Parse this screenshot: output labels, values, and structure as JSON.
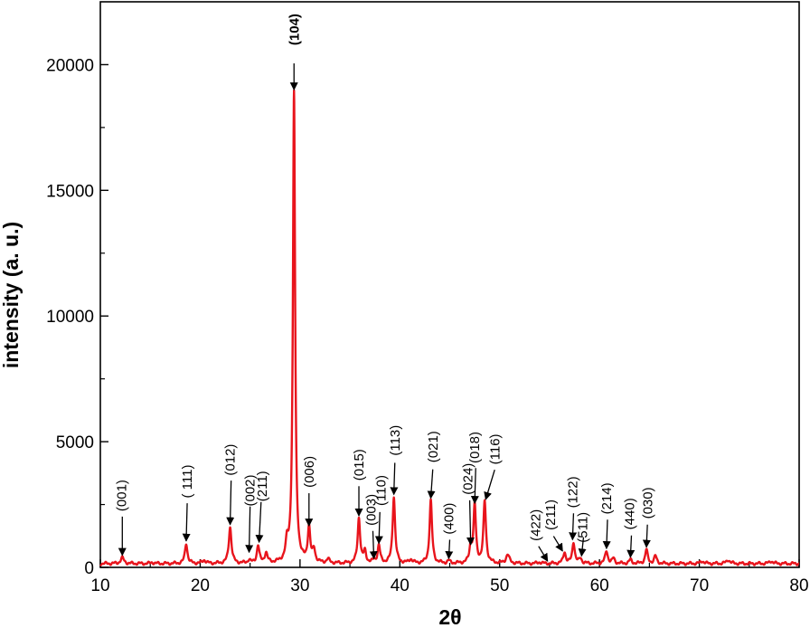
{
  "chart_data": {
    "type": "line",
    "title": "",
    "xlabel": "2θ",
    "ylabel": "intensity (a. u.)",
    "xlim": [
      10,
      80
    ],
    "ylim": [
      0,
      22500
    ],
    "x_ticks": [
      10,
      20,
      30,
      40,
      50,
      60,
      70,
      80
    ],
    "x_tick_labels": [
      "10",
      "20",
      "30",
      "40",
      "50",
      "60",
      "70",
      "80"
    ],
    "y_ticks": [
      0,
      5000,
      10000,
      15000,
      20000
    ],
    "y_tick_labels": [
      "0",
      "5000",
      "10000",
      "15000",
      "20000"
    ],
    "grid": false,
    "line_color": "#e8141c",
    "baseline": 150,
    "peaks": [
      {
        "x": 12.2,
        "y": 380,
        "w": 0.2
      },
      {
        "x": 15.2,
        "y": 200,
        "w": 0.15
      },
      {
        "x": 18.6,
        "y": 950,
        "w": 0.15
      },
      {
        "x": 20.4,
        "y": 280,
        "w": 0.2
      },
      {
        "x": 23.0,
        "y": 1600,
        "w": 0.16
      },
      {
        "x": 24.9,
        "y": 280,
        "w": 0.15
      },
      {
        "x": 25.8,
        "y": 850,
        "w": 0.15
      },
      {
        "x": 26.6,
        "y": 550,
        "w": 0.16
      },
      {
        "x": 28.7,
        "y": 800,
        "w": 0.16
      },
      {
        "x": 29.4,
        "y": 18900,
        "w": 0.13
      },
      {
        "x": 30.9,
        "y": 1550,
        "w": 0.15
      },
      {
        "x": 31.4,
        "y": 650,
        "w": 0.15
      },
      {
        "x": 32.8,
        "y": 300,
        "w": 0.18
      },
      {
        "x": 35.9,
        "y": 1950,
        "w": 0.15
      },
      {
        "x": 36.5,
        "y": 600,
        "w": 0.15
      },
      {
        "x": 37.4,
        "y": 250,
        "w": 0.15
      },
      {
        "x": 37.9,
        "y": 850,
        "w": 0.15
      },
      {
        "x": 39.4,
        "y": 2800,
        "w": 0.15
      },
      {
        "x": 41.1,
        "y": 300,
        "w": 0.2
      },
      {
        "x": 43.1,
        "y": 2650,
        "w": 0.15
      },
      {
        "x": 44.9,
        "y": 250,
        "w": 0.15
      },
      {
        "x": 47.1,
        "y": 800,
        "w": 0.15
      },
      {
        "x": 47.5,
        "y": 2450,
        "w": 0.14
      },
      {
        "x": 48.5,
        "y": 2600,
        "w": 0.15
      },
      {
        "x": 50.8,
        "y": 500,
        "w": 0.2
      },
      {
        "x": 54.0,
        "y": 200,
        "w": 0.2
      },
      {
        "x": 56.5,
        "y": 600,
        "w": 0.15
      },
      {
        "x": 57.4,
        "y": 1000,
        "w": 0.15
      },
      {
        "x": 58.1,
        "y": 350,
        "w": 0.15
      },
      {
        "x": 60.7,
        "y": 650,
        "w": 0.16
      },
      {
        "x": 61.4,
        "y": 350,
        "w": 0.15
      },
      {
        "x": 63.1,
        "y": 300,
        "w": 0.16
      },
      {
        "x": 64.7,
        "y": 700,
        "w": 0.15
      },
      {
        "x": 65.6,
        "y": 450,
        "w": 0.15
      },
      {
        "x": 70.3,
        "y": 250,
        "w": 0.2
      },
      {
        "x": 72.9,
        "y": 300,
        "w": 0.2
      },
      {
        "x": 77.2,
        "y": 250,
        "w": 0.2
      }
    ],
    "annotations": [
      {
        "label": "(001)",
        "label_x": 12.2,
        "label_y": 2860,
        "arrow_x1": 12.2,
        "arrow_y1": 2020,
        "arrow_x2": 12.2,
        "arrow_y2": 480,
        "bold": false
      },
      {
        "label": "( 111)",
        "label_x": 18.8,
        "label_y": 3420,
        "arrow_x1": 18.7,
        "arrow_y1": 2550,
        "arrow_x2": 18.6,
        "arrow_y2": 1050,
        "bold": false
      },
      {
        "label": "(012)",
        "label_x": 23.1,
        "label_y": 4280,
        "arrow_x1": 23.1,
        "arrow_y1": 3450,
        "arrow_x2": 23.0,
        "arrow_y2": 1700,
        "bold": false
      },
      {
        "label": "(002)",
        "label_x": 25.1,
        "label_y": 3060,
        "arrow_x1": 25.0,
        "arrow_y1": 2420,
        "arrow_x2": 24.9,
        "arrow_y2": 600,
        "bold": false
      },
      {
        "label": "(211)",
        "label_x": 26.3,
        "label_y": 3230,
        "arrow_x1": 26.1,
        "arrow_y1": 2600,
        "arrow_x2": 25.9,
        "arrow_y2": 1000,
        "bold": false
      },
      {
        "label": "(104)",
        "label_x": 29.5,
        "label_y": 21400,
        "arrow_x1": 29.4,
        "arrow_y1": 20050,
        "arrow_x2": 29.4,
        "arrow_y2": 19000,
        "bold": true
      },
      {
        "label": "(006)",
        "label_x": 31.0,
        "label_y": 3800,
        "arrow_x1": 30.9,
        "arrow_y1": 2950,
        "arrow_x2": 30.9,
        "arrow_y2": 1650,
        "bold": false
      },
      {
        "label": "(015)",
        "label_x": 36.0,
        "label_y": 4080,
        "arrow_x1": 35.9,
        "arrow_y1": 3230,
        "arrow_x2": 35.9,
        "arrow_y2": 2050,
        "bold": false
      },
      {
        "label": "(003)",
        "label_x": 37.2,
        "label_y": 2290,
        "arrow_x1": 37.3,
        "arrow_y1": 1450,
        "arrow_x2": 37.4,
        "arrow_y2": 350,
        "bold": false
      },
      {
        "label": "(110)",
        "label_x": 38.2,
        "label_y": 3060,
        "arrow_x1": 38.0,
        "arrow_y1": 2200,
        "arrow_x2": 37.9,
        "arrow_y2": 950,
        "bold": false
      },
      {
        "label": "(113)",
        "label_x": 39.6,
        "label_y": 5050,
        "arrow_x1": 39.5,
        "arrow_y1": 4160,
        "arrow_x2": 39.4,
        "arrow_y2": 2900,
        "bold": false
      },
      {
        "label": "(021)",
        "label_x": 43.4,
        "label_y": 4800,
        "arrow_x1": 43.3,
        "arrow_y1": 3900,
        "arrow_x2": 43.1,
        "arrow_y2": 2750,
        "bold": false
      },
      {
        "label": "(400)",
        "label_x": 45.0,
        "label_y": 1940,
        "arrow_x1": 45.0,
        "arrow_y1": 1100,
        "arrow_x2": 44.9,
        "arrow_y2": 350,
        "bold": false
      },
      {
        "label": "(024)",
        "label_x": 46.9,
        "label_y": 3520,
        "arrow_x1": 47.0,
        "arrow_y1": 2670,
        "arrow_x2": 47.1,
        "arrow_y2": 900,
        "bold": false
      },
      {
        "label": "(018)",
        "label_x": 47.6,
        "label_y": 4770,
        "arrow_x1": 47.6,
        "arrow_y1": 3950,
        "arrow_x2": 47.5,
        "arrow_y2": 2550,
        "bold": false
      },
      {
        "label": "(116)",
        "label_x": 49.6,
        "label_y": 4700,
        "arrow_x1": 49.5,
        "arrow_y1": 3880,
        "arrow_x2": 48.6,
        "arrow_y2": 2700,
        "bold": false
      },
      {
        "label": "(422)",
        "label_x": 53.7,
        "label_y": 1680,
        "arrow_x1": 53.9,
        "arrow_y1": 840,
        "arrow_x2": 54.8,
        "arrow_y2": 250,
        "bold": false
      },
      {
        "label": "(211)",
        "label_x": 55.2,
        "label_y": 2090,
        "arrow_x1": 55.4,
        "arrow_y1": 1240,
        "arrow_x2": 56.3,
        "arrow_y2": 650,
        "bold": false
      },
      {
        "label": "(122)",
        "label_x": 57.4,
        "label_y": 2990,
        "arrow_x1": 57.4,
        "arrow_y1": 2150,
        "arrow_x2": 57.3,
        "arrow_y2": 1100,
        "bold": false
      },
      {
        "label": "(511)",
        "label_x": 58.4,
        "label_y": 1590,
        "arrow_x1": 58.4,
        "arrow_y1": 1200,
        "arrow_x2": 58.2,
        "arrow_y2": 450,
        "bold": false
      },
      {
        "label": "(214)",
        "label_x": 60.8,
        "label_y": 2740,
        "arrow_x1": 60.8,
        "arrow_y1": 1900,
        "arrow_x2": 60.7,
        "arrow_y2": 750,
        "bold": false
      },
      {
        "label": "(440)",
        "label_x": 63.1,
        "label_y": 2130,
        "arrow_x1": 63.2,
        "arrow_y1": 1270,
        "arrow_x2": 63.1,
        "arrow_y2": 400,
        "bold": false
      },
      {
        "label": "(030)",
        "label_x": 64.9,
        "label_y": 2560,
        "arrow_x1": 64.8,
        "arrow_y1": 1700,
        "arrow_x2": 64.7,
        "arrow_y2": 800,
        "bold": false
      }
    ]
  }
}
